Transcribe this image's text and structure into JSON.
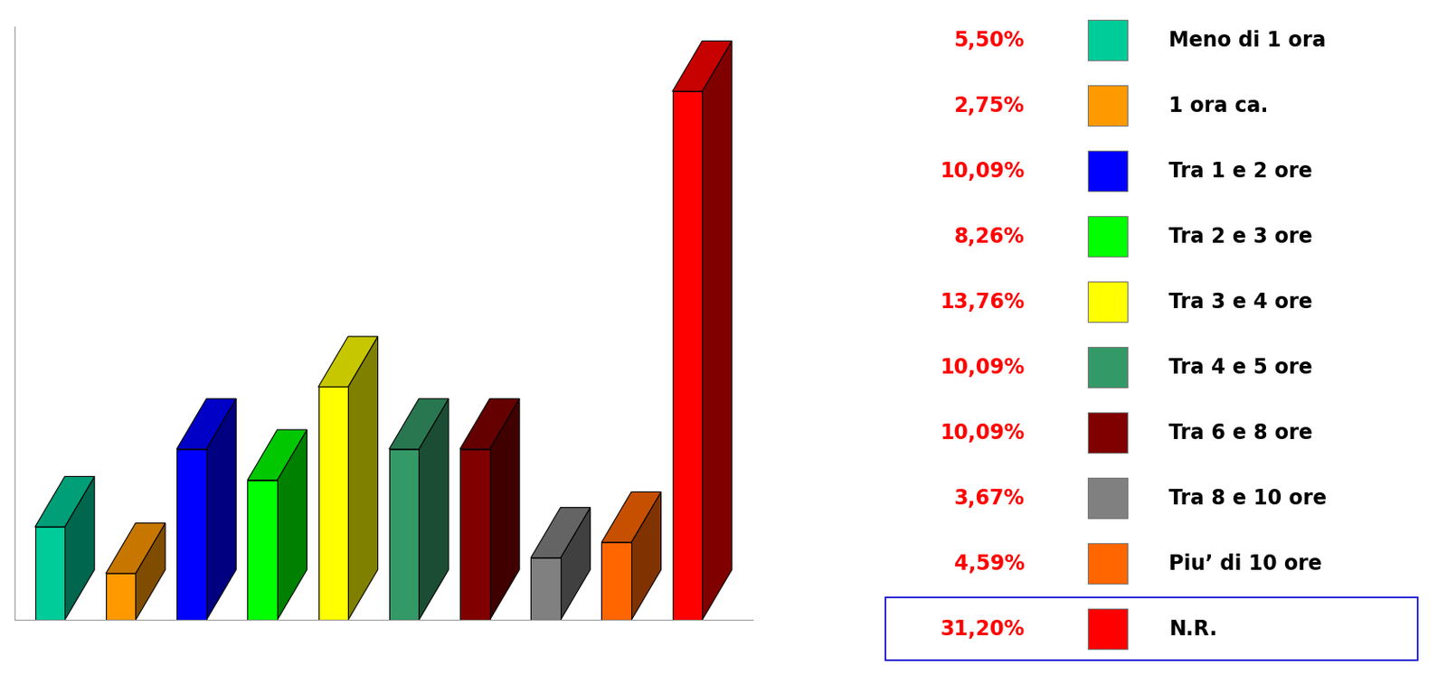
{
  "chart_data": {
    "type": "bar",
    "categories": [
      "Meno di 1 ora",
      "1 ora ca.",
      "Tra 1 e 2 ore",
      "Tra 2 e 3 ore",
      "Tra 3 e 4 ore",
      "Tra 4 e 5 ore",
      "Tra 6 e 8 ore",
      "Tra 8 e 10 ore",
      "Piu’ di 10 ore",
      "N.R."
    ],
    "values": [
      5.5,
      2.75,
      10.09,
      8.26,
      13.76,
      10.09,
      10.09,
      3.67,
      4.59,
      31.2
    ],
    "value_labels": [
      "5,50%",
      "2,75%",
      "10,09%",
      "8,26%",
      "13,76%",
      "10,09%",
      "10,09%",
      "3,67%",
      "4,59%",
      "31,20%"
    ],
    "colors": [
      "#00CC99",
      "#FF9900",
      "#0000FF",
      "#00FF00",
      "#FFFF00",
      "#339966",
      "#800000",
      "#808080",
      "#FF6600",
      "#FF0000"
    ],
    "ylim": [
      0,
      35
    ],
    "tick_labels": false,
    "legend": "right"
  }
}
